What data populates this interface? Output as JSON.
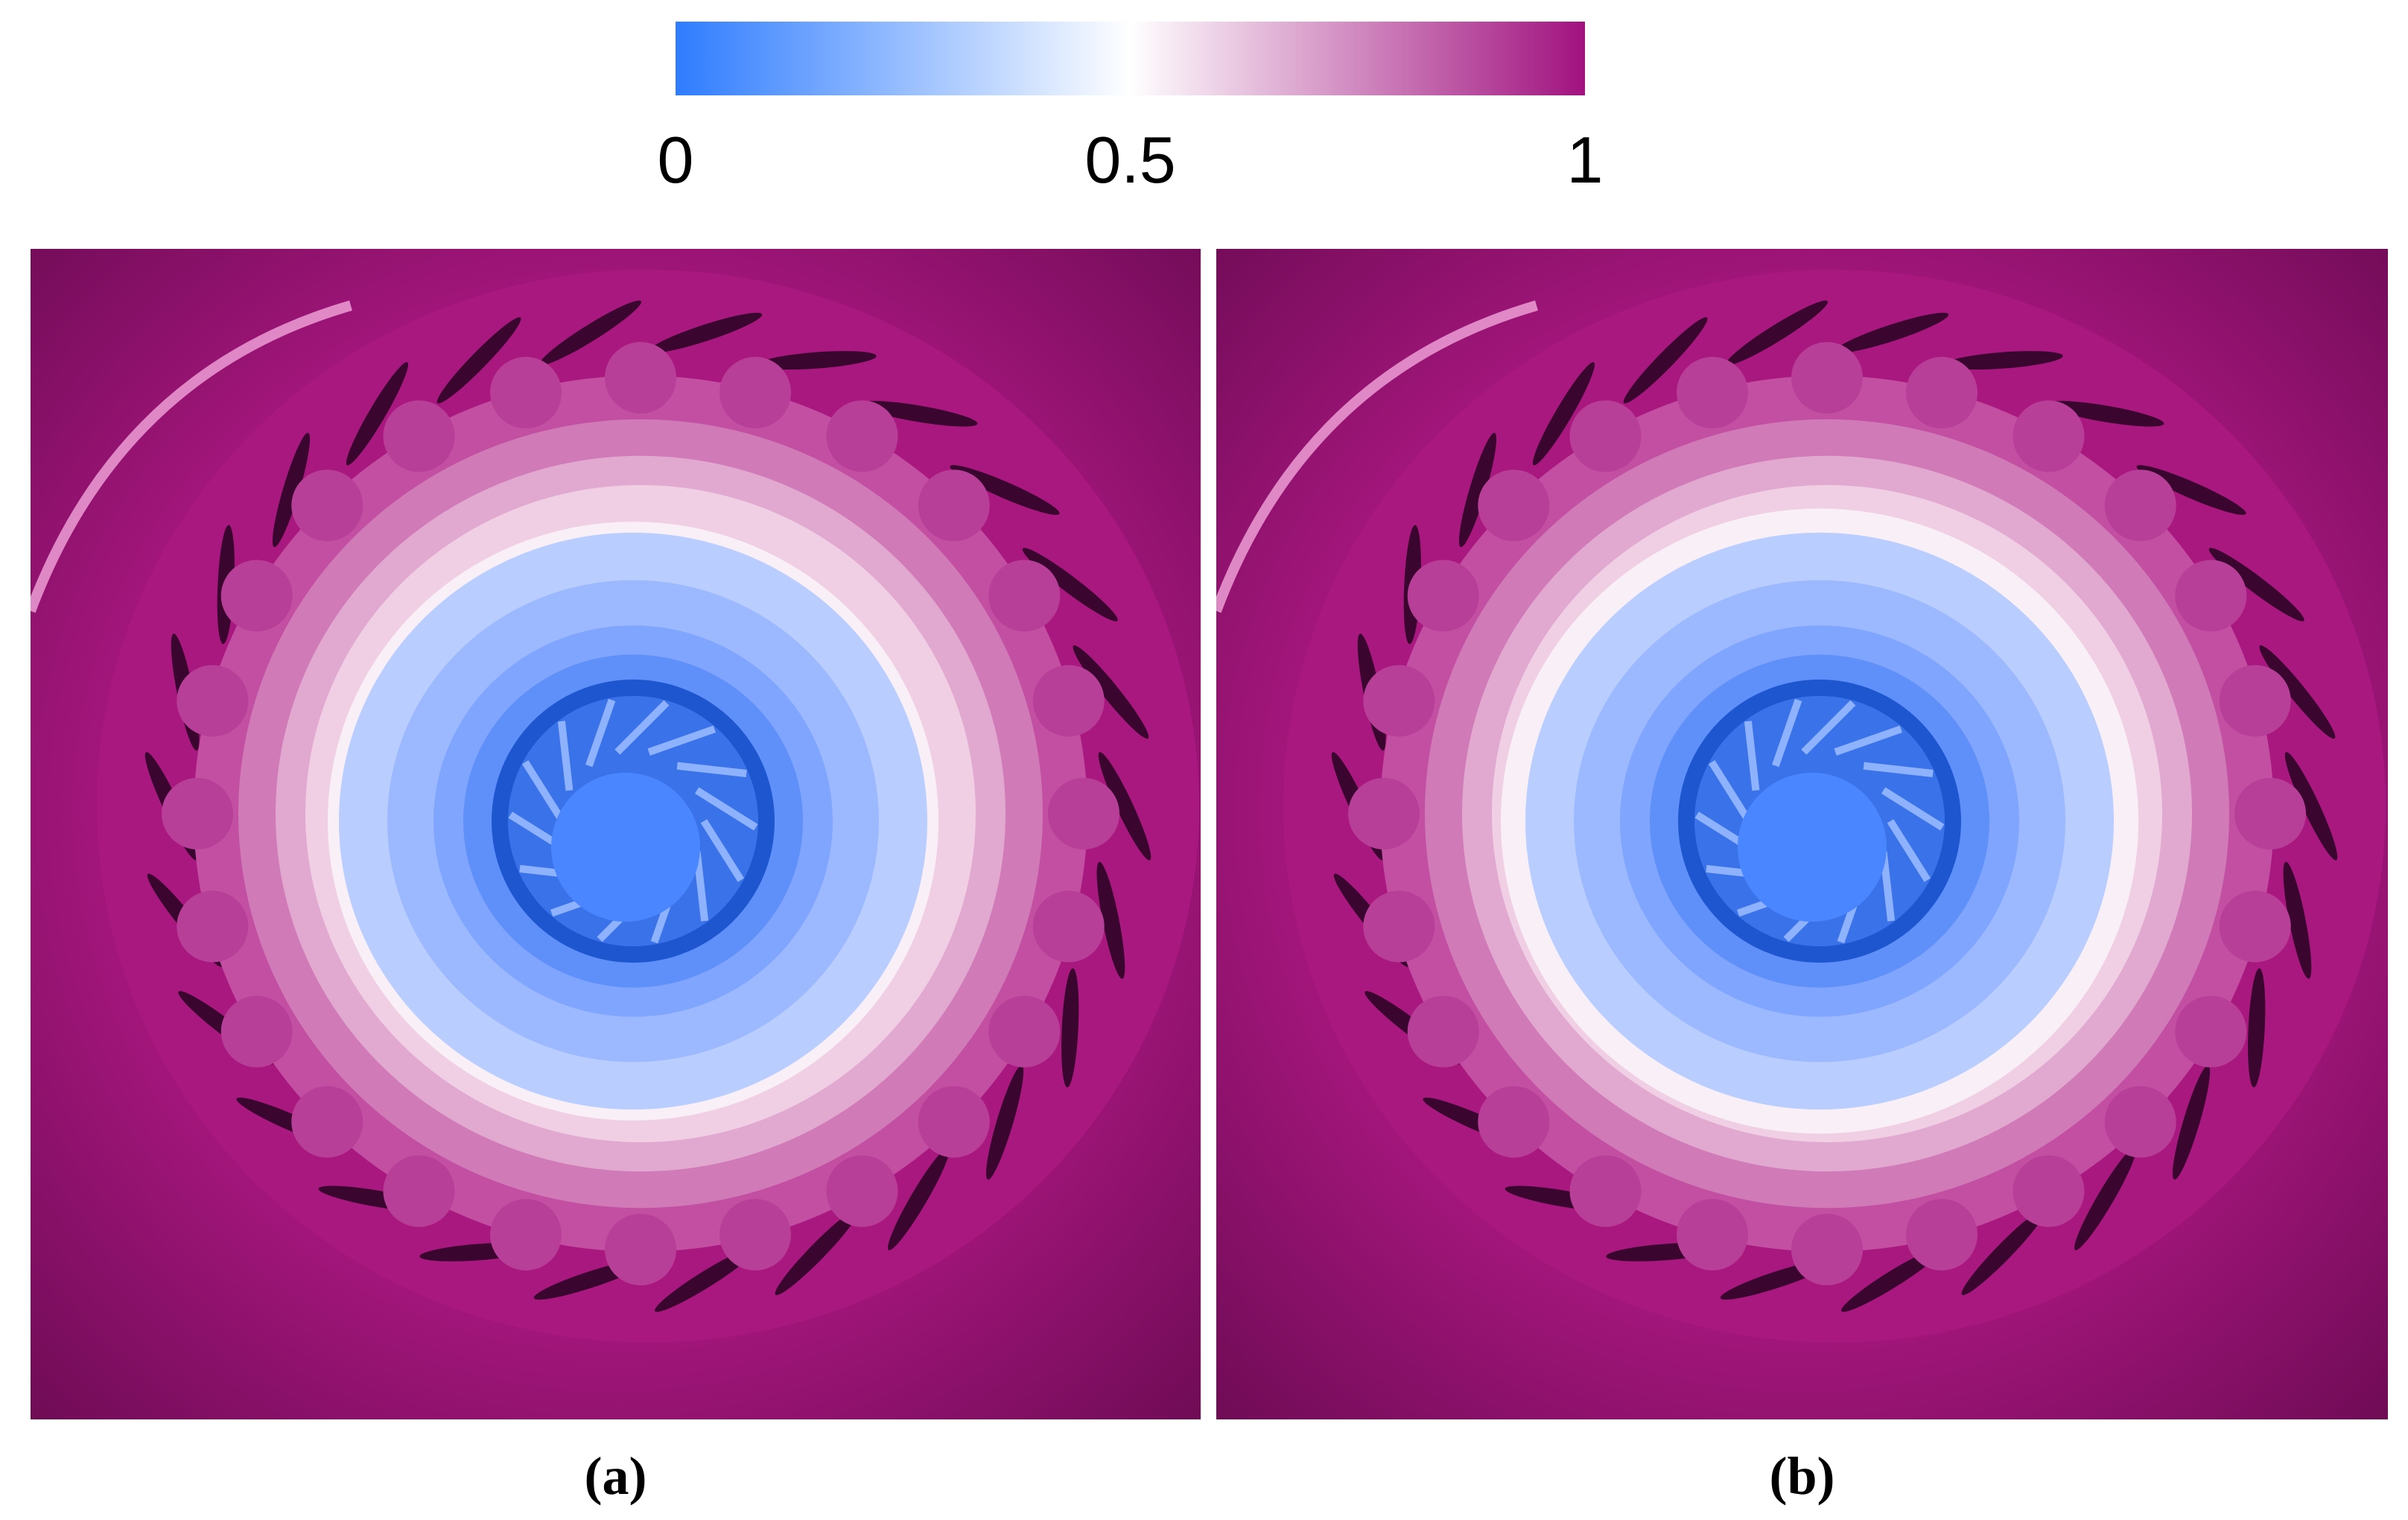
{
  "colorbar": {
    "lim": [
      0,
      1
    ],
    "ticks": [
      0,
      0.5,
      1
    ],
    "colors": [
      "#2f7cff",
      "#ffffff",
      "#a1127f"
    ]
  },
  "panels": [
    {
      "label": "(a)"
    },
    {
      "label": "(b)"
    }
  ]
}
